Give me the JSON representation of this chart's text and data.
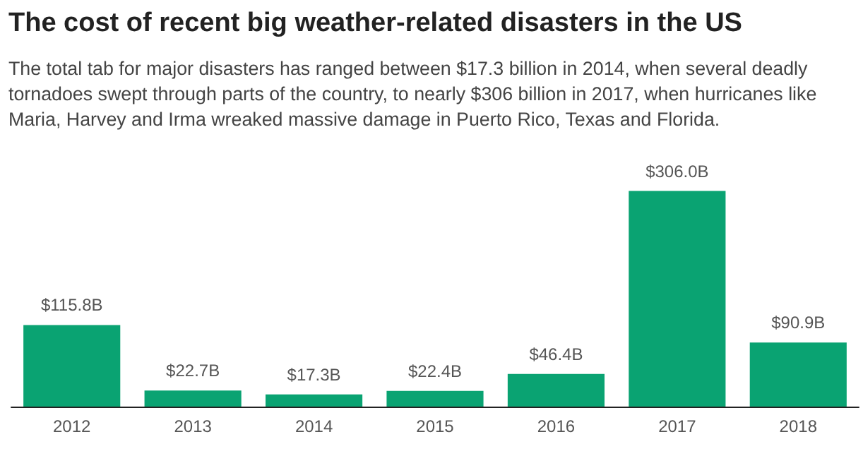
{
  "chart_data": {
    "type": "bar",
    "title": "The cost of recent big weather-related disasters in the US",
    "subtitle": "The total tab for major disasters has ranged between $17.3 billion in 2014, when several deadly tornadoes swept through parts of the country, to nearly $306 billion in 2017, when hurricanes like Maria, Harvey and Irma wreaked massive damage in Puerto Rico, Texas and Florida.",
    "categories": [
      "2012",
      "2013",
      "2014",
      "2015",
      "2016",
      "2017",
      "2018"
    ],
    "values": [
      115.8,
      22.7,
      17.3,
      22.4,
      46.4,
      306.0,
      90.9
    ],
    "value_labels": [
      "$115.8B",
      "$22.7B",
      "$17.3B",
      "$22.4B",
      "$46.4B",
      "$306.0B",
      "$90.9B"
    ],
    "color": "#0aa372"
  }
}
